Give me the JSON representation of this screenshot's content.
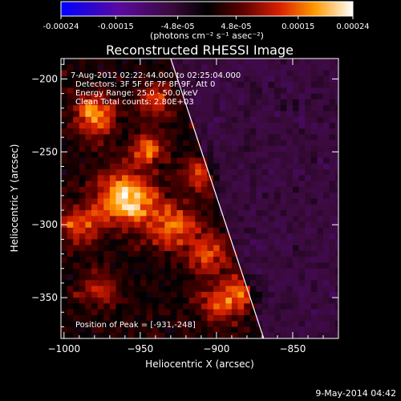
{
  "chart_data": {
    "type": "heatmap",
    "title": "Reconstructed RHESSI Image",
    "xlabel": "Heliocentric X (arcsec)",
    "ylabel": "Heliocentric Y (arcsec)",
    "xlim": [
      -1002,
      -820
    ],
    "ylim": [
      -378,
      -186
    ],
    "xticks": [
      -1000,
      -950,
      -900,
      -850
    ],
    "yticks": [
      -200,
      -250,
      -300,
      -350
    ],
    "colorbar": {
      "ticks": [
        "-0.00024",
        "-0.00015",
        "-4.8e-05",
        "4.8e-05",
        "0.00015",
        "0.00024"
      ],
      "unit_label": "(photons cm⁻² s⁻¹ asec⁻²)",
      "range": [
        -0.00024,
        0.00024
      ]
    },
    "info_lines": [
      "7-Aug-2012 02:22:44.000 to 02:25:04.000",
      "Detectors: 3F 5F 6F 7F 8F 9F, Att 0",
      "Energy Range: 25.0 - 50.0 keV",
      "Clean   Total counts: 2.80E+03"
    ],
    "peak_label": "Position of Peak = [-931,-248]",
    "peak": [
      -931,
      -248
    ],
    "limb_line": [
      [
        -930,
        -186
      ],
      [
        -869,
        -378
      ]
    ],
    "colors": {
      "background": "#000000",
      "frame": "#ffffff",
      "limb": "#ffffff"
    },
    "hotspots": [
      {
        "x": -960,
        "y": -282,
        "r": 18,
        "amp": 1.0
      },
      {
        "x": -980,
        "y": -225,
        "r": 14,
        "amp": 0.75
      },
      {
        "x": -945,
        "y": -248,
        "r": 10,
        "amp": 0.7
      },
      {
        "x": -930,
        "y": -300,
        "r": 16,
        "amp": 0.65
      },
      {
        "x": -905,
        "y": -320,
        "r": 14,
        "amp": 0.6
      },
      {
        "x": -885,
        "y": -348,
        "r": 12,
        "amp": 0.55
      },
      {
        "x": -900,
        "y": -355,
        "r": 12,
        "amp": 0.5
      },
      {
        "x": -990,
        "y": -300,
        "r": 14,
        "amp": 0.55
      },
      {
        "x": -975,
        "y": -345,
        "r": 12,
        "amp": 0.45
      },
      {
        "x": -940,
        "y": -215,
        "r": 12,
        "amp": 0.5
      },
      {
        "x": -910,
        "y": -265,
        "r": 12,
        "amp": 0.5
      }
    ]
  },
  "footer_date": "9-May-2014 04:42"
}
